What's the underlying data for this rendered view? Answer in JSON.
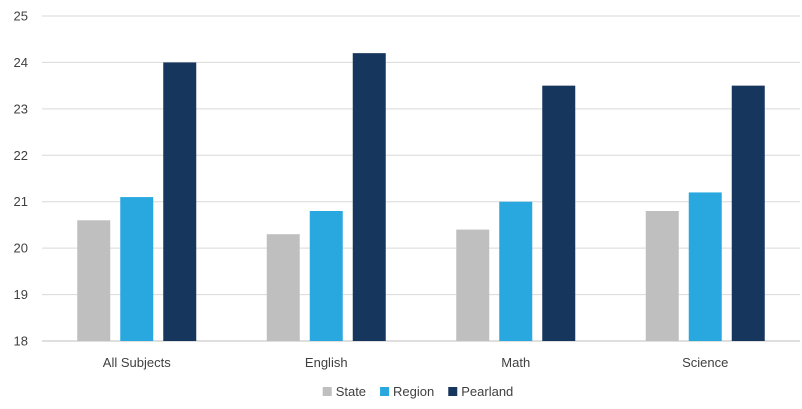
{
  "chart_data": {
    "type": "bar",
    "categories": [
      "All Subjects",
      "English",
      "Math",
      "Science"
    ],
    "series": [
      {
        "name": "State",
        "color": "#bfbfbf",
        "values": [
          20.6,
          20.3,
          20.4,
          20.8
        ]
      },
      {
        "name": "Region",
        "color": "#29a8e0",
        "values": [
          21.1,
          20.8,
          21.0,
          21.2
        ]
      },
      {
        "name": "Pearland",
        "color": "#17365d",
        "values": [
          24.0,
          24.2,
          23.5,
          23.5
        ]
      }
    ],
    "ylim": [
      18,
      25
    ],
    "yticks": [
      "18",
      "19",
      "20",
      "21",
      "22",
      "23",
      "24",
      "25"
    ],
    "grid": true,
    "legend_position": "bottom"
  }
}
